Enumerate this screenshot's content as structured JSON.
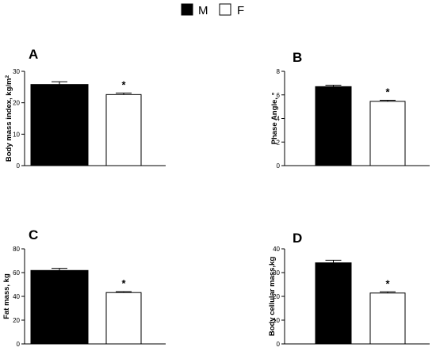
{
  "legend": [
    {
      "label": "M",
      "fill": "#000000"
    },
    {
      "label": "F",
      "fill": "#ffffff"
    }
  ],
  "chart_data": [
    {
      "type": "bar",
      "panel_label": "A",
      "ylabel": "Body mass index, kg/m",
      "ylabel_superscript": "2",
      "ylim": [
        0,
        30
      ],
      "ticks": [
        0,
        10,
        20,
        30
      ],
      "categories": [
        "M",
        "F"
      ],
      "values": [
        25.8,
        22.6
      ],
      "errors": [
        0.9,
        0.5
      ],
      "annotations": [
        "",
        "*"
      ]
    },
    {
      "type": "bar",
      "panel_label": "B",
      "ylabel": "Phase Angle, °",
      "ylim": [
        0,
        8
      ],
      "ticks": [
        0,
        2,
        4,
        6,
        8
      ],
      "categories": [
        "M",
        "F"
      ],
      "values": [
        6.7,
        5.45
      ],
      "errors": [
        0.12,
        0.1
      ],
      "annotations": [
        "",
        "*"
      ]
    },
    {
      "type": "bar",
      "panel_label": "C",
      "ylabel": "Fat mass, kg",
      "ylim": [
        0,
        80
      ],
      "ticks": [
        0,
        20,
        40,
        60,
        80
      ],
      "categories": [
        "M",
        "F"
      ],
      "values": [
        61.8,
        43.2
      ],
      "errors": [
        1.8,
        0.8
      ],
      "annotations": [
        "",
        "*"
      ]
    },
    {
      "type": "bar",
      "panel_label": "D",
      "ylabel": "Body cellular mass,kg",
      "ylim": [
        0,
        40
      ],
      "ticks": [
        0,
        10,
        20,
        30,
        40
      ],
      "categories": [
        "M",
        "F"
      ],
      "values": [
        34.1,
        21.4
      ],
      "errors": [
        1.1,
        0.5
      ],
      "annotations": [
        "",
        "*"
      ]
    }
  ]
}
